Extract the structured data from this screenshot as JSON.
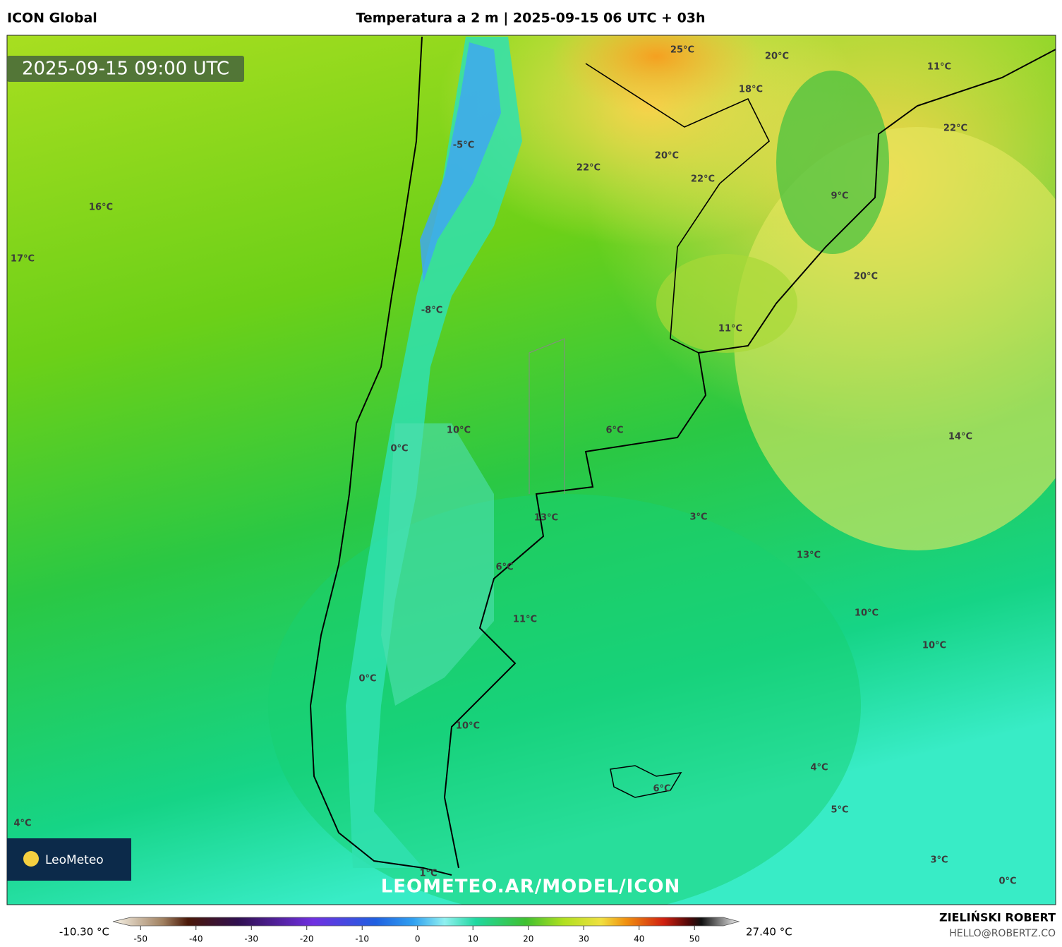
{
  "header": {
    "model": "ICON Global",
    "title": "Temperatura a 2 m | 2025-09-15 06 UTC + 03h"
  },
  "map": {
    "valid_time": "2025-09-15 09:00 UTC",
    "watermark": "LEOMETEO.AR/MODEL/ICON",
    "logo": "LeoMeteo",
    "labels": [
      "25°C",
      "20°C",
      "11°C",
      "18°C",
      "22°C",
      "-5°C",
      "22°C",
      "20°C",
      "22°C",
      "9°C",
      "16°C",
      "17°C",
      "20°C",
      "-8°C",
      "11°C",
      "10°C",
      "6°C",
      "0°C",
      "14°C",
      "13°C",
      "3°C",
      "13°C",
      "6°C",
      "10°C",
      "11°C",
      "10°C",
      "0°C",
      "10°C",
      "4°C",
      "6°C",
      "5°C",
      "4°C",
      "3°C",
      "1°C",
      "0°C"
    ]
  },
  "colorbar": {
    "min_label": "-10.30 °C",
    "max_label": "27.40 °C",
    "lim": [
      -55,
      58
    ],
    "ticks": [
      -50,
      -40,
      -30,
      -20,
      -10,
      0,
      10,
      20,
      30,
      40,
      50
    ]
  },
  "footer": {
    "author": "ZIELIŃSKI ROBERT",
    "contact": "HELLO@ROBERTZ.CO"
  }
}
